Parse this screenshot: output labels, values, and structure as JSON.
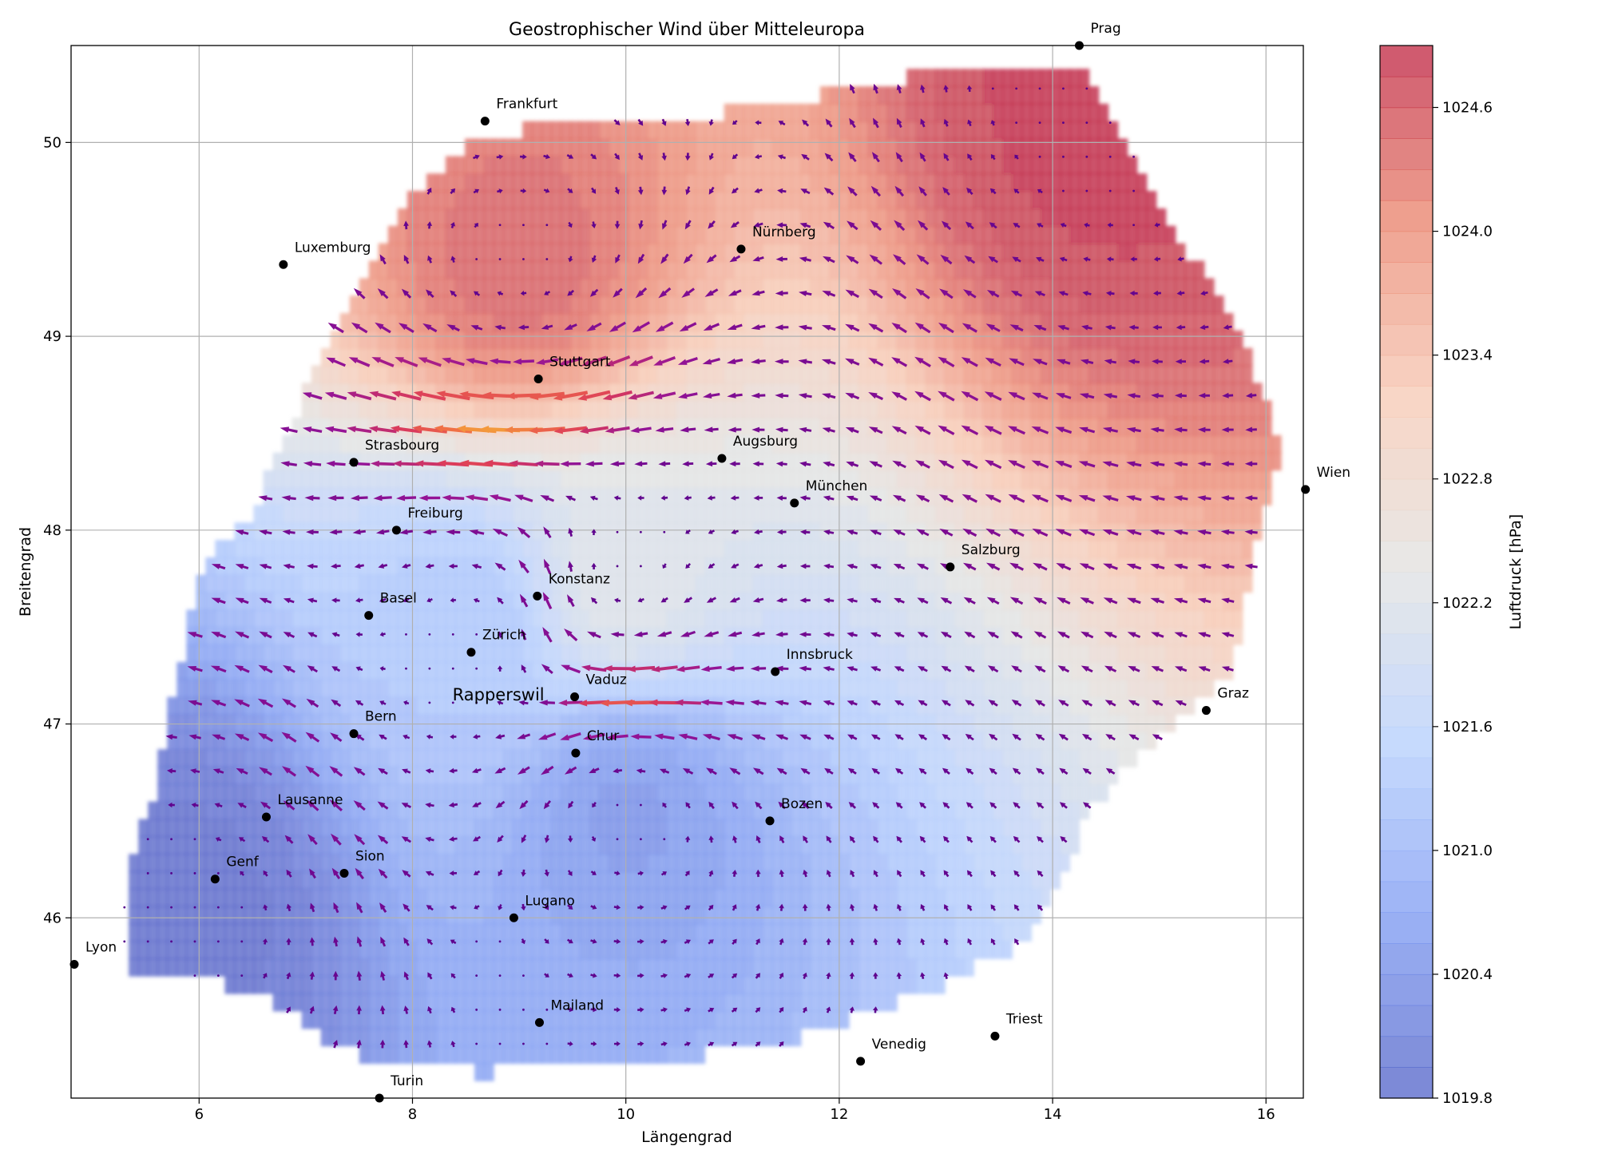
{
  "chart_data": {
    "type": "heatmap",
    "title": "Geostrophischer Wind über Mitteleuropa",
    "xlabel": "Längengrad",
    "ylabel": "Breitengrad",
    "xlim": [
      4.8,
      16.35
    ],
    "ylim": [
      45.07,
      50.5
    ],
    "xticks": [
      "6",
      "8",
      "10",
      "12",
      "14",
      "16"
    ],
    "yticks": [
      "46",
      "47",
      "48",
      "49",
      "50"
    ],
    "grid": true,
    "colorbar": {
      "label": "Luftdruck [hPa]",
      "min": 1019.8,
      "max": 1024.9,
      "ticks": [
        "1019.8",
        "1020.4",
        "1021.0",
        "1021.6",
        "1022.2",
        "1022.8",
        "1023.4",
        "1024.0",
        "1024.6"
      ],
      "colormap": "coolwarm",
      "colors": [
        "#3b4cc0",
        "#6a8bef",
        "#aac7fd",
        "#dcdddd",
        "#f5c1a9",
        "#e7745b",
        "#b40426"
      ]
    },
    "pressure_centers": [
      {
        "lon": 5.9,
        "lat": 46.05,
        "hpa": 1019.8
      },
      {
        "lon": 10.0,
        "lat": 46.6,
        "hpa": 1020.4
      },
      {
        "lon": 8.6,
        "lat": 47.5,
        "hpa": 1021.2
      },
      {
        "lon": 9.0,
        "lat": 49.35,
        "hpa": 1024.5
      },
      {
        "lon": 14.5,
        "lat": 50.2,
        "hpa": 1024.9
      },
      {
        "lon": 9.9,
        "lat": 47.7,
        "hpa": 1022.3
      }
    ],
    "cities": [
      {
        "name": "Prag",
        "lon": 14.25,
        "lat": 50.5
      },
      {
        "name": "Frankfurt",
        "lon": 8.68,
        "lat": 50.11
      },
      {
        "name": "Nürnberg",
        "lon": 11.08,
        "lat": 49.45
      },
      {
        "name": "Luxemburg",
        "lon": 6.79,
        "lat": 49.37
      },
      {
        "name": "Stuttgart",
        "lon": 9.18,
        "lat": 48.78
      },
      {
        "name": "Strasbourg",
        "lon": 7.45,
        "lat": 48.35
      },
      {
        "name": "Augsburg",
        "lon": 10.9,
        "lat": 48.37
      },
      {
        "name": "München",
        "lon": 11.58,
        "lat": 48.14
      },
      {
        "name": "Wien",
        "lon": 16.37,
        "lat": 48.21
      },
      {
        "name": "Freiburg",
        "lon": 7.85,
        "lat": 48.0
      },
      {
        "name": "Salzburg",
        "lon": 13.04,
        "lat": 47.81
      },
      {
        "name": "Konstanz",
        "lon": 9.17,
        "lat": 47.66
      },
      {
        "name": "Basel",
        "lon": 7.59,
        "lat": 47.56
      },
      {
        "name": "Zürich",
        "lon": 8.55,
        "lat": 47.37
      },
      {
        "name": "Innsbruck",
        "lon": 11.4,
        "lat": 47.27
      },
      {
        "name": "Vaduz",
        "lon": 9.52,
        "lat": 47.14
      },
      {
        "name": "Graz",
        "lon": 15.44,
        "lat": 47.07
      },
      {
        "name": "Bern",
        "lon": 7.45,
        "lat": 46.95
      },
      {
        "name": "Chur",
        "lon": 9.53,
        "lat": 46.85
      },
      {
        "name": "Lausanne",
        "lon": 6.63,
        "lat": 46.52
      },
      {
        "name": "Bozen",
        "lon": 11.35,
        "lat": 46.5
      },
      {
        "name": "Genf",
        "lon": 6.15,
        "lat": 46.2
      },
      {
        "name": "Sion",
        "lon": 7.36,
        "lat": 46.23
      },
      {
        "name": "Lugano",
        "lon": 8.95,
        "lat": 46.0
      },
      {
        "name": "Lyon",
        "lon": 4.83,
        "lat": 45.76
      },
      {
        "name": "Mailand",
        "lon": 9.19,
        "lat": 45.46
      },
      {
        "name": "Triest",
        "lon": 13.46,
        "lat": 45.39
      },
      {
        "name": "Venedig",
        "lon": 12.2,
        "lat": 45.26
      },
      {
        "name": "Turin",
        "lon": 7.69,
        "lat": 45.07
      }
    ],
    "highlight": {
      "name": "Rapperswil",
      "lon": 8.45,
      "lat": 47.13
    }
  }
}
